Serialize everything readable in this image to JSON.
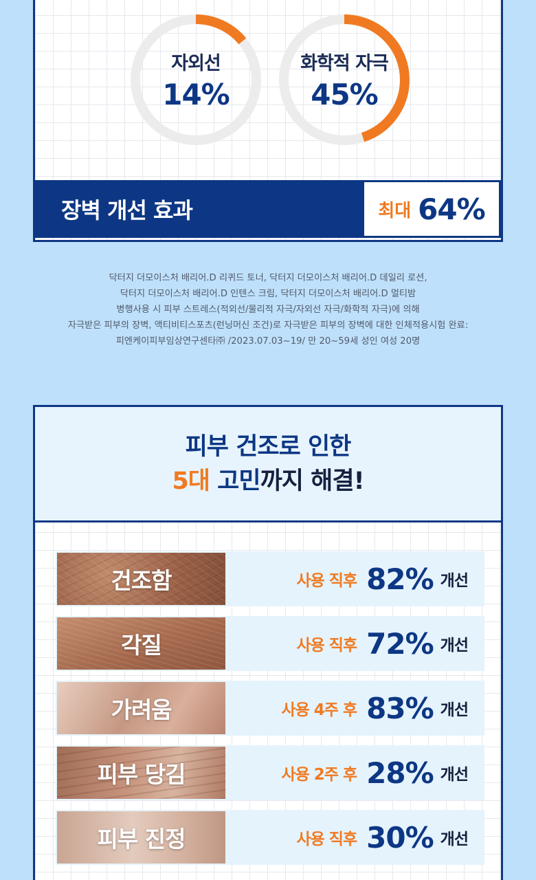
{
  "rings": [
    {
      "label": "자외선",
      "value": "14%",
      "percent": 14
    },
    {
      "label": "화학적 자극",
      "value": "45%",
      "percent": 45
    }
  ],
  "barrier": {
    "label": "장벽 개선 효과",
    "prefix": "최대",
    "value": "64%"
  },
  "footnote": [
    "닥터지 더모이스처 배리어.D 리퀴드 토너, 닥터지 더모이스처 배리어.D 데일리 로션,",
    "닥터지 더모이스처 배리어.D 인텐스 크림, 닥터지 더모이스처 배리어.D 멀티밤",
    "병행사용 시 피부 스트레스(적외선/물리적 자극/자외선 자극/화학적 자극)에 의해",
    "자극받은 피부의 장벽, 액티비티스포츠(런닝머신 조건)로 자극받은 피부의 장벽에 대한 인체적용시험 완료:",
    "피엔케이피부임상연구센타㈜ /2023.07.03~19/ 만 20~59세 성인 여성 20명"
  ],
  "concerns": {
    "line1": "피부 건조로 인한",
    "line2_highlight": "5대",
    "line2_mid": " 고민",
    "line2_rest": "까지 해결!"
  },
  "colors": {
    "navy": "#0d3784",
    "orange": "#f07a21",
    "track": "#ececec",
    "background": "#bfe0fa"
  },
  "rows": [
    {
      "name": "건조함",
      "timing": "사용 직후",
      "value": "82%",
      "suffix": "개선"
    },
    {
      "name": "각질",
      "timing": "사용 직후",
      "value": "72%",
      "suffix": "개선"
    },
    {
      "name": "가려움",
      "timing": "사용 4주 후",
      "value": "83%",
      "suffix": "개선"
    },
    {
      "name": "피부 당김",
      "timing": "사용 2주 후",
      "value": "28%",
      "suffix": "개선"
    },
    {
      "name": "피부 진정",
      "timing": "사용 직후",
      "value": "30%",
      "suffix": "개선"
    }
  ]
}
